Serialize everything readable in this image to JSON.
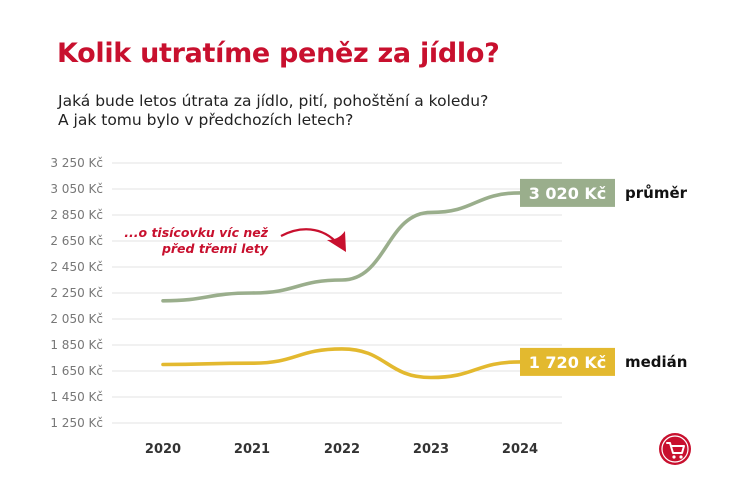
{
  "header": {
    "title": "Kolik utratíme peněz za jídlo?",
    "subtitle_line1": "Jaká bude letos útrata za jídlo, pití, pohoštění a koledu?",
    "subtitle_line2": "A jak tomu bylo v předchozích letech?"
  },
  "chart_data": {
    "type": "line",
    "x": [
      "2020",
      "2021",
      "2022",
      "2023",
      "2024"
    ],
    "ylim": [
      1250,
      3250
    ],
    "yticks": [
      3250,
      3050,
      2850,
      2650,
      2450,
      2250,
      2050,
      1850,
      1650,
      1450,
      1250
    ],
    "ytick_labels": [
      "3 250 Kč",
      "3 050 Kč",
      "2 850 Kč",
      "2 650 Kč",
      "2 450 Kč",
      "2 250 Kč",
      "2 050 Kč",
      "1 850 Kč",
      "1 650 Kč",
      "1 450 Kč",
      "1 250 Kč"
    ],
    "grid": true,
    "series": [
      {
        "name": "průměr",
        "values": [
          2190,
          2250,
          2350,
          2870,
          3020
        ],
        "color": "#9aae8c",
        "end_label": "3 020 Kč"
      },
      {
        "name": "medián",
        "values": [
          1700,
          1710,
          1820,
          1600,
          1720
        ],
        "color": "#e3b92f",
        "end_label": "1 720 Kč"
      }
    ],
    "annotation": {
      "line1": "...o tisícovku víc než",
      "line2": "před třemi lety",
      "color": "#c8102e"
    }
  },
  "logo": {
    "icon": "shopping-cart-icon",
    "color": "#c8102e"
  }
}
